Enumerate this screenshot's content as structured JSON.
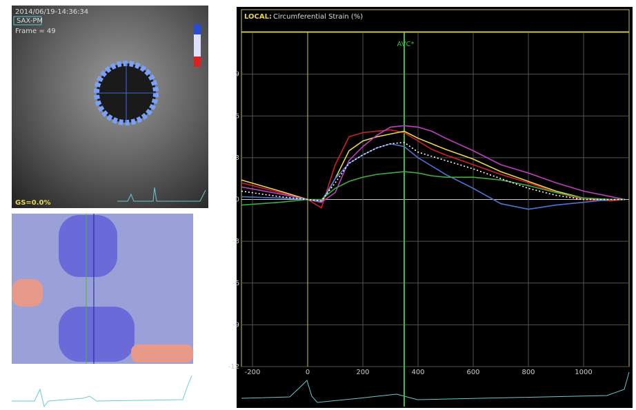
{
  "image_panel": {
    "timestamp": "2014/06/19-14:36:34",
    "view": "SAX-PM",
    "frame": "Frame = 49",
    "gain": "GS=0.0%"
  },
  "chart_data": {
    "type": "line",
    "title": "LOCAL:",
    "subtitle": "Circumferential Strain (%)",
    "x": [
      -240,
      -100,
      0,
      50,
      100,
      150,
      200,
      250,
      300,
      350,
      400,
      450,
      500,
      600,
      700,
      800,
      900,
      1000,
      1100,
      1150
    ],
    "series": [
      {
        "color": "#d0202a",
        "values": [
          1.2,
          0.5,
          0,
          -0.6,
          2.5,
          4.5,
          4.8,
          4.9,
          5.0,
          4.8,
          4.2,
          3.6,
          3.2,
          2.5,
          1.8,
          1.2,
          0.5,
          0,
          -0.1,
          0
        ]
      },
      {
        "color": "#e8d84a",
        "values": [
          1.4,
          0.6,
          0,
          -0.2,
          1.5,
          3.5,
          4.2,
          4.5,
          4.7,
          4.9,
          4.4,
          4.0,
          3.6,
          2.9,
          2.0,
          1.3,
          0.6,
          0.1,
          0,
          0
        ]
      },
      {
        "color": "#c040c0",
        "values": [
          0.9,
          0.4,
          0,
          -0.2,
          0.5,
          2.8,
          3.8,
          4.6,
          5.2,
          5.3,
          5.2,
          4.9,
          4.4,
          3.5,
          2.5,
          1.9,
          1.2,
          0.6,
          0.2,
          0
        ]
      },
      {
        "color": "#4a78d8",
        "values": [
          0.2,
          0.1,
          0,
          -0.1,
          1.5,
          2.6,
          3.2,
          3.7,
          4.0,
          3.8,
          3.0,
          2.4,
          1.8,
          0.8,
          -0.3,
          -0.7,
          -0.4,
          -0.2,
          0,
          0
        ]
      },
      {
        "color": "#3cae3c",
        "values": [
          -0.4,
          -0.2,
          0,
          0,
          0.8,
          1.3,
          1.6,
          1.8,
          1.9,
          2.0,
          1.9,
          1.7,
          1.6,
          1.6,
          1.4,
          1.0,
          0.5,
          0.1,
          0,
          0
        ]
      },
      {
        "color": "#ffffff",
        "dashed": true,
        "values": [
          0.6,
          0.2,
          0,
          -0.1,
          1.2,
          2.6,
          3.2,
          3.7,
          4.0,
          4.1,
          3.4,
          3.1,
          2.8,
          2.2,
          1.5,
          0.8,
          0.3,
          0,
          0,
          0
        ]
      }
    ],
    "markers": [
      {
        "label": "AVC*",
        "x": 350,
        "color": "#3cbf3c"
      }
    ],
    "xlim": [
      -240,
      1165
    ],
    "xticks": [
      -200,
      0,
      200,
      400,
      600,
      800,
      1000
    ],
    "ylim": [
      -12,
      12
    ],
    "yticks": [
      -12,
      -9,
      -6,
      -3,
      0,
      3,
      6,
      9
    ],
    "grid": true
  }
}
